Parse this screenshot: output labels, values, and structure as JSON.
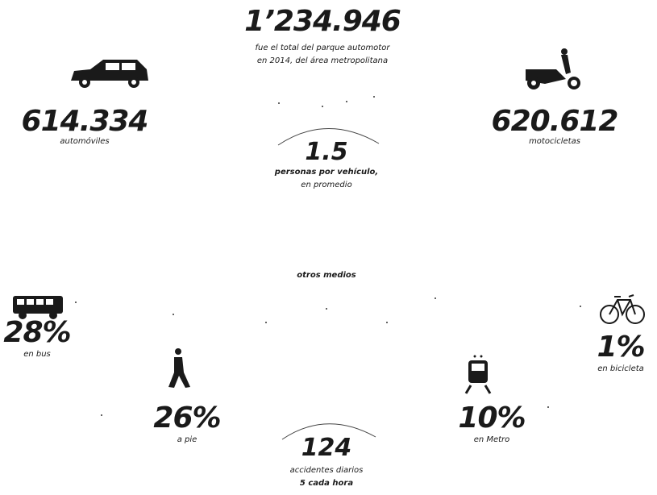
{
  "total": {
    "value": "1’234.946",
    "caption_lines": [
      "fue el total del parque automotor",
      "en 2014, del área metropolitana"
    ]
  },
  "cars": {
    "value": "614.334",
    "caption": "automóviles"
  },
  "motorcycles": {
    "value": "620.612",
    "caption": "motocicletas"
  },
  "occupancy": {
    "value": "1.5",
    "caption_lines": [
      "personas por vehículo,",
      "en promedio"
    ]
  },
  "other_modes": {
    "heading": "otros medios",
    "items": [
      {
        "value": "28%",
        "caption": "en bus"
      },
      {
        "value": "26%",
        "caption": "a pie"
      },
      {
        "value": "10%",
        "caption": "en Metro"
      },
      {
        "value": "1%",
        "caption": "en bicicleta"
      }
    ]
  },
  "accidents": {
    "value": "124",
    "caption_lines": [
      "accidentes diarios",
      "5 cada hora"
    ]
  }
}
